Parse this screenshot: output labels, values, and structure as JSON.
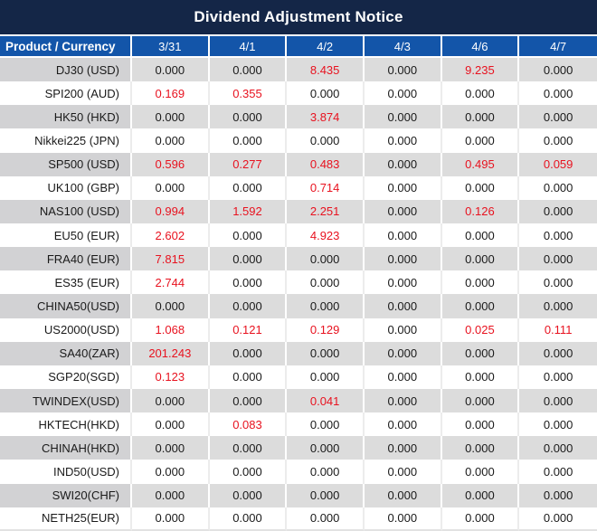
{
  "title": "Dividend Adjustment Notice",
  "colors": {
    "title_bg": "#142647",
    "header_bg": "#1355a9",
    "row_gray": "#dcdcdc",
    "product_gray": "#d2d2d4",
    "red": "#e8121f",
    "text_dark": "#1a1a1a"
  },
  "chart_data": {
    "type": "table",
    "title": "Dividend Adjustment Notice",
    "columns": [
      "Product / Currency",
      "3/31",
      "4/1",
      "4/2",
      "4/3",
      "4/6",
      "4/7"
    ],
    "rows": [
      {
        "product": "DJ30 (USD)",
        "values": [
          "0.000",
          "0.000",
          "8.435",
          "0.000",
          "9.235",
          "0.000"
        ],
        "red": [
          false,
          false,
          true,
          false,
          true,
          false
        ]
      },
      {
        "product": "SPI200 (AUD)",
        "values": [
          "0.169",
          "0.355",
          "0.000",
          "0.000",
          "0.000",
          "0.000"
        ],
        "red": [
          true,
          true,
          false,
          false,
          false,
          false
        ]
      },
      {
        "product": "HK50 (HKD)",
        "values": [
          "0.000",
          "0.000",
          "3.874",
          "0.000",
          "0.000",
          "0.000"
        ],
        "red": [
          false,
          false,
          true,
          false,
          false,
          false
        ]
      },
      {
        "product": "Nikkei225 (JPN)",
        "values": [
          "0.000",
          "0.000",
          "0.000",
          "0.000",
          "0.000",
          "0.000"
        ],
        "red": [
          false,
          false,
          false,
          false,
          false,
          false
        ]
      },
      {
        "product": "SP500 (USD)",
        "values": [
          "0.596",
          "0.277",
          "0.483",
          "0.000",
          "0.495",
          "0.059"
        ],
        "red": [
          true,
          true,
          true,
          false,
          true,
          true
        ]
      },
      {
        "product": "UK100 (GBP)",
        "values": [
          "0.000",
          "0.000",
          "0.714",
          "0.000",
          "0.000",
          "0.000"
        ],
        "red": [
          false,
          false,
          true,
          false,
          false,
          false
        ]
      },
      {
        "product": "NAS100 (USD)",
        "values": [
          "0.994",
          "1.592",
          "2.251",
          "0.000",
          "0.126",
          "0.000"
        ],
        "red": [
          true,
          true,
          true,
          false,
          true,
          false
        ]
      },
      {
        "product": "EU50 (EUR)",
        "values": [
          "2.602",
          "0.000",
          "4.923",
          "0.000",
          "0.000",
          "0.000"
        ],
        "red": [
          true,
          false,
          true,
          false,
          false,
          false
        ]
      },
      {
        "product": "FRA40 (EUR)",
        "values": [
          "7.815",
          "0.000",
          "0.000",
          "0.000",
          "0.000",
          "0.000"
        ],
        "red": [
          true,
          false,
          false,
          false,
          false,
          false
        ]
      },
      {
        "product": "ES35 (EUR)",
        "values": [
          "2.744",
          "0.000",
          "0.000",
          "0.000",
          "0.000",
          "0.000"
        ],
        "red": [
          true,
          false,
          false,
          false,
          false,
          false
        ]
      },
      {
        "product": "CHINA50(USD)",
        "values": [
          "0.000",
          "0.000",
          "0.000",
          "0.000",
          "0.000",
          "0.000"
        ],
        "red": [
          false,
          false,
          false,
          false,
          false,
          false
        ]
      },
      {
        "product": "US2000(USD)",
        "values": [
          "1.068",
          "0.121",
          "0.129",
          "0.000",
          "0.025",
          "0.111"
        ],
        "red": [
          true,
          true,
          true,
          false,
          true,
          true
        ]
      },
      {
        "product": "SA40(ZAR)",
        "values": [
          "201.243",
          "0.000",
          "0.000",
          "0.000",
          "0.000",
          "0.000"
        ],
        "red": [
          true,
          false,
          false,
          false,
          false,
          false
        ]
      },
      {
        "product": "SGP20(SGD)",
        "values": [
          "0.123",
          "0.000",
          "0.000",
          "0.000",
          "0.000",
          "0.000"
        ],
        "red": [
          true,
          false,
          false,
          false,
          false,
          false
        ]
      },
      {
        "product": "TWINDEX(USD)",
        "values": [
          "0.000",
          "0.000",
          "0.041",
          "0.000",
          "0.000",
          "0.000"
        ],
        "red": [
          false,
          false,
          true,
          false,
          false,
          false
        ]
      },
      {
        "product": "HKTECH(HKD)",
        "values": [
          "0.000",
          "0.083",
          "0.000",
          "0.000",
          "0.000",
          "0.000"
        ],
        "red": [
          false,
          true,
          false,
          false,
          false,
          false
        ]
      },
      {
        "product": "CHINAH(HKD)",
        "values": [
          "0.000",
          "0.000",
          "0.000",
          "0.000",
          "0.000",
          "0.000"
        ],
        "red": [
          false,
          false,
          false,
          false,
          false,
          false
        ]
      },
      {
        "product": "IND50(USD)",
        "values": [
          "0.000",
          "0.000",
          "0.000",
          "0.000",
          "0.000",
          "0.000"
        ],
        "red": [
          false,
          false,
          false,
          false,
          false,
          false
        ]
      },
      {
        "product": "SWI20(CHF)",
        "values": [
          "0.000",
          "0.000",
          "0.000",
          "0.000",
          "0.000",
          "0.000"
        ],
        "red": [
          false,
          false,
          false,
          false,
          false,
          false
        ]
      },
      {
        "product": "NETH25(EUR)",
        "values": [
          "0.000",
          "0.000",
          "0.000",
          "0.000",
          "0.000",
          "0.000"
        ],
        "red": [
          false,
          false,
          false,
          false,
          false,
          false
        ]
      }
    ]
  },
  "table": {
    "product_header": "Product / Currency",
    "date_columns": [
      "3/31",
      "4/1",
      "4/2",
      "4/3",
      "4/6",
      "4/7"
    ]
  }
}
